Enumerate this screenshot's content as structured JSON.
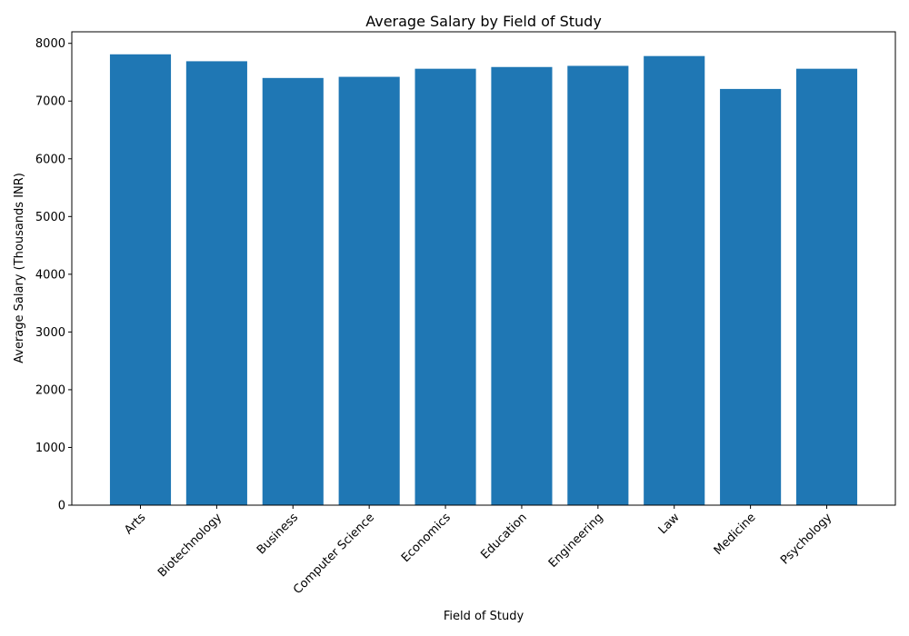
{
  "chart_data": {
    "type": "bar",
    "title": "Average Salary by Field of Study",
    "xlabel": "Field of Study",
    "ylabel": "Average Salary (Thousands INR)",
    "categories": [
      "Arts",
      "Biotechnology",
      "Business",
      "Computer Science",
      "Economics",
      "Education",
      "Engineering",
      "Law",
      "Medicine",
      "Psychology"
    ],
    "values": [
      7810,
      7690,
      7400,
      7420,
      7560,
      7590,
      7610,
      7780,
      7210,
      7560
    ],
    "ylim": [
      0,
      8200
    ],
    "yticks": [
      0,
      1000,
      2000,
      3000,
      4000,
      5000,
      6000,
      7000,
      8000
    ],
    "bar_color": "#1f77b4",
    "grid": false,
    "legend": "none"
  }
}
